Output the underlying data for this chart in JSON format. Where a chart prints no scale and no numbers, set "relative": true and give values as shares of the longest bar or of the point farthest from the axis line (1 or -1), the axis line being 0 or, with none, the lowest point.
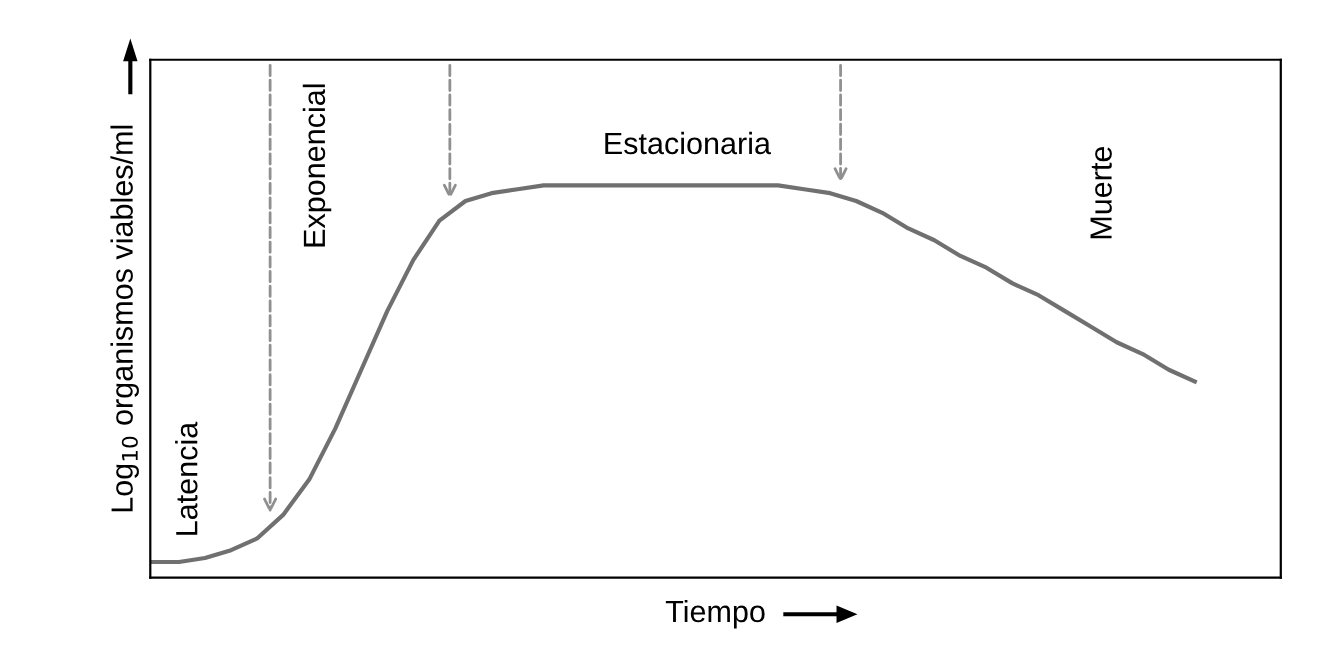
{
  "chart_data": {
    "type": "line",
    "relative": true,
    "ylabel": "Log$_{10}$ organismos viables/ml",
    "xlabel": "Tiempo",
    "categories": [
      null,
      null,
      null,
      null,
      null,
      null,
      null,
      null,
      null,
      null,
      null,
      null,
      null,
      null,
      null,
      null,
      null,
      null,
      null,
      null,
      null,
      null,
      null,
      null,
      null,
      null,
      null,
      null,
      null,
      null,
      null,
      null,
      null,
      null,
      null,
      null,
      null,
      null,
      null,
      null,
      null
    ],
    "series": [
      {
        "color": "#707070",
        "values": [
          0.04,
          0.04,
          0.05,
          0.07,
          0.1,
          0.16,
          0.25,
          0.38,
          0.53,
          0.68,
          0.81,
          0.91,
          0.96,
          0.98,
          0.99,
          1,
          1,
          1,
          1,
          1,
          1,
          1,
          1,
          1,
          1,
          0.99,
          0.98,
          0.96,
          0.93,
          0.89,
          0.86,
          0.82,
          0.79,
          0.75,
          0.72,
          0.68,
          0.64,
          0.6,
          0.57,
          0.53,
          0.5
        ]
      }
    ],
    "annotations": [
      "Latencia",
      "Exponencial",
      "Estacionaria",
      "Muerte"
    ],
    "legend": false,
    "marker": "none",
    "line_style": "solid"
  }
}
